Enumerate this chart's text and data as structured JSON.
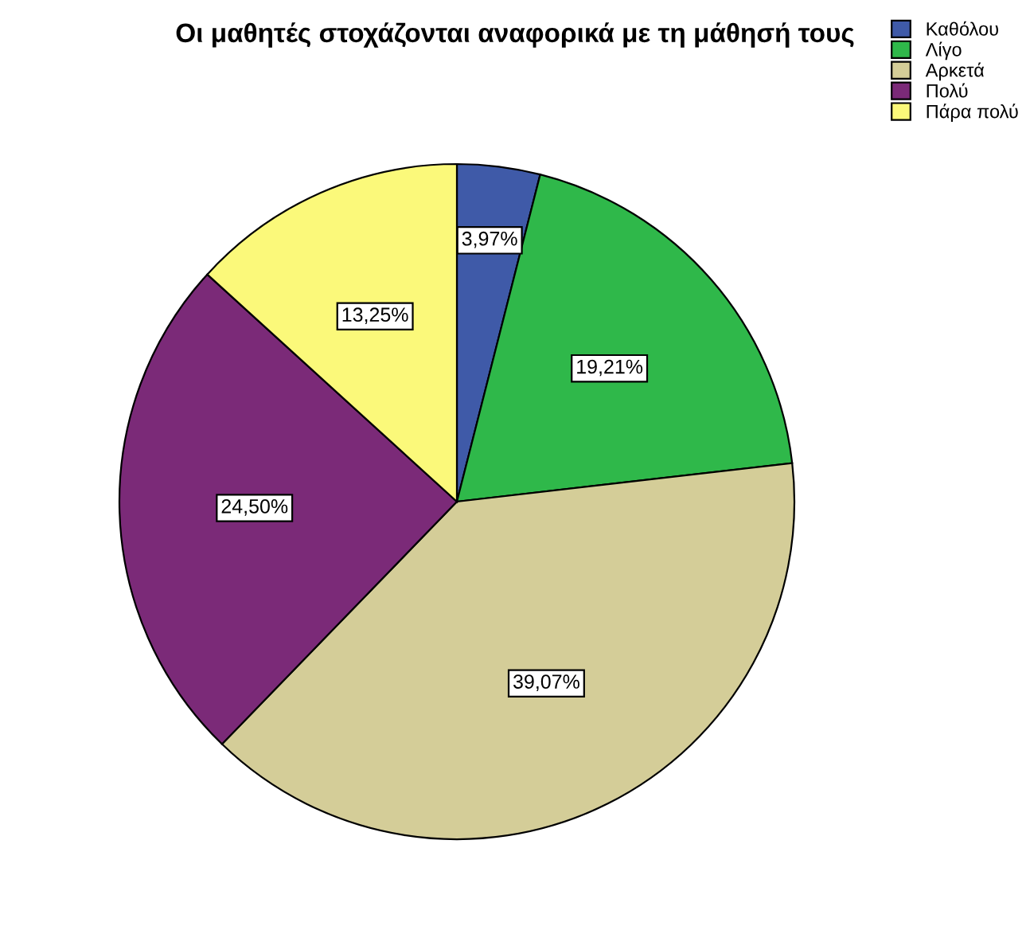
{
  "chart_data": {
    "type": "pie",
    "title": "Οι μαθητές στοχάζονται αναφορικά με τη μάθησή τους",
    "categories": [
      "Καθόλου",
      "Λίγο",
      "Αρκετά",
      "Πολύ",
      "Πάρα πολύ"
    ],
    "values": [
      3.97,
      19.21,
      39.07,
      24.5,
      13.25
    ],
    "value_labels": [
      "3,97%",
      "19,21%",
      "39,07%",
      "24,50%",
      "13,25%"
    ],
    "colors": [
      "#3f5aa8",
      "#2fb84a",
      "#d4cd98",
      "#7b2a78",
      "#fbf97a"
    ],
    "legend": "top right"
  }
}
